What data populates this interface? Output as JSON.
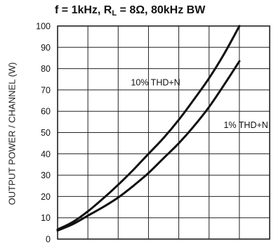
{
  "chart_data": {
    "type": "line",
    "title": {
      "prefix": "f = 1kHz, R",
      "sub": "L",
      "suffix": " = 8Ω, 80kHz BW"
    },
    "xlabel": "",
    "ylabel": "OUTPUT POWER / CHANNEL (W)",
    "ylim": [
      0,
      100
    ],
    "yticks": [
      "0",
      "10",
      "20",
      "30",
      "40",
      "50",
      "60",
      "70",
      "80",
      "90",
      "100"
    ],
    "xlim": [
      0,
      7
    ],
    "x_divisions": 7,
    "grid": true,
    "series": [
      {
        "name": "10% THD+N",
        "x": [
          0,
          0.5,
          1,
          1.5,
          2,
          2.5,
          3,
          3.5,
          4,
          4.5,
          5,
          5.5,
          6
        ],
        "values": [
          4.5,
          8,
          13,
          19,
          25.5,
          32.5,
          40,
          47.5,
          56,
          65.5,
          75.5,
          87,
          100
        ]
      },
      {
        "name": "1% THD+N",
        "x": [
          0,
          0.5,
          1,
          1.5,
          2,
          2.5,
          3,
          3.5,
          4,
          4.5,
          5,
          5.5,
          6
        ],
        "values": [
          4,
          7,
          11,
          15,
          19.5,
          25,
          31,
          38,
          45,
          53,
          62,
          72.5,
          83.5
        ]
      }
    ]
  }
}
